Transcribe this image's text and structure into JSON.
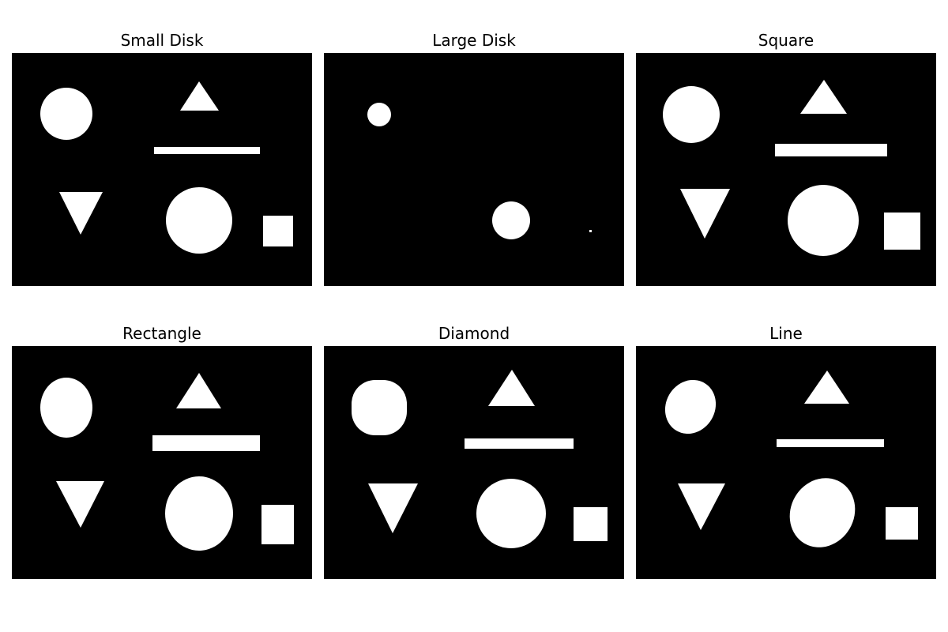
{
  "figure": {
    "background_color": "#ffffff",
    "panel_color": "#000000",
    "shape_color": "#ffffff",
    "panels": [
      {
        "title": "Small Disk"
      },
      {
        "title": "Large Disk"
      },
      {
        "title": "Square"
      },
      {
        "title": "Rectangle"
      },
      {
        "title": "Diamond"
      },
      {
        "title": "Line"
      }
    ]
  }
}
